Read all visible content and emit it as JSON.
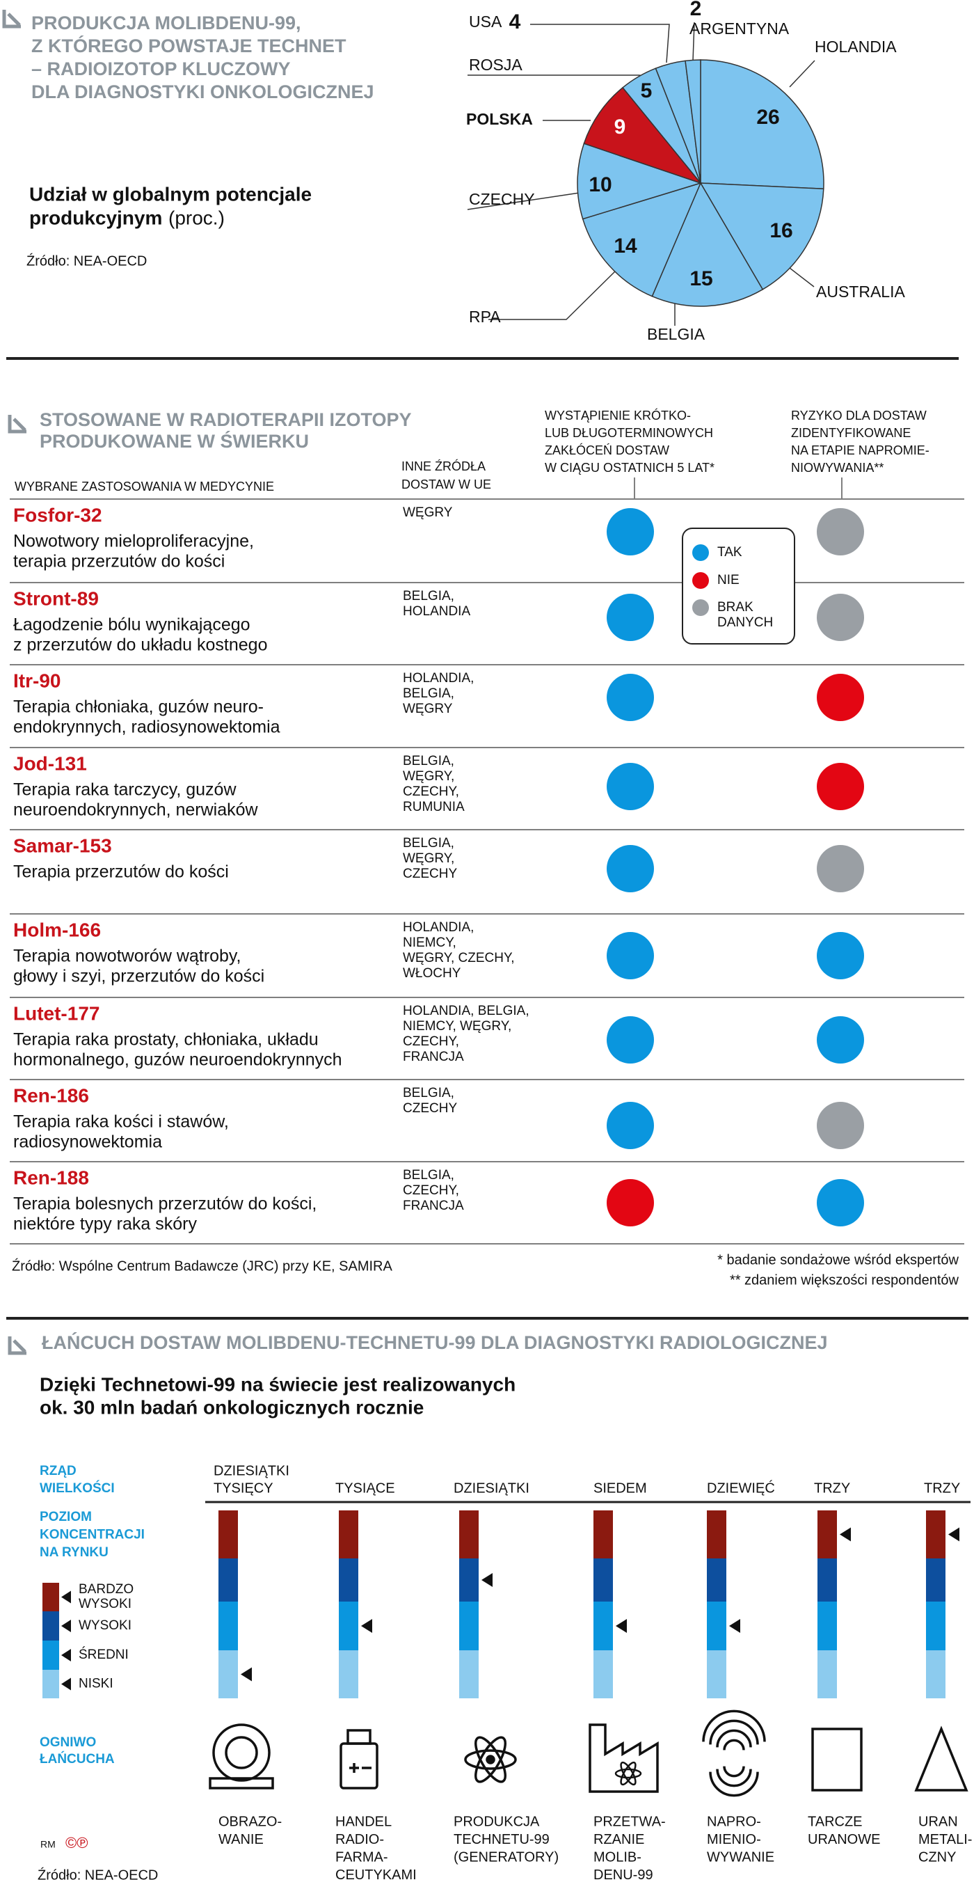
{
  "chart_data": {
    "type": "pie",
    "title_lines": [
      "PRODUKCJA MOLIBDENU-99,",
      "Z KTÓREGO POWSTAJE TECHNET",
      "– RADIOIZOTOP KLUCZOWY",
      "DLA DIAGNOSTYKI ONKOLOGICZNEJ"
    ],
    "subtitle_lines": [
      "Udział w globalnym potencjale",
      "produkcyjnym"
    ],
    "unit": "(proc.)",
    "source": "Źródło: NEA-OECD",
    "categories": [
      "HOLANDIA",
      "AUSTRALIA",
      "BELGIA",
      "RPA",
      "CZECHY",
      "POLSKA",
      "ROSJA",
      "USA",
      "ARGENTYNA"
    ],
    "values": [
      26,
      16,
      15,
      14,
      10,
      9,
      5,
      4,
      2
    ],
    "colors": [
      "#7dc4ef",
      "#7dc4ef",
      "#7dc4ef",
      "#7dc4ef",
      "#7dc4ef",
      "#c8131b",
      "#7dc4ef",
      "#7dc4ef",
      "#7dc4ef"
    ]
  },
  "isotopes": {
    "title_lines": [
      "STOSOWANE W RADIOTERAPII IZOTOPY",
      "PRODUKOWANE W ŚWIERKU"
    ],
    "application_header": "WYBRANE ZASTOSOWANIA W MEDYCYNIE",
    "sources_header_lines": [
      "INNE ŹRÓDŁA",
      "DOSTAW W UE"
    ],
    "disruption_header_lines": [
      "WYSTĄPIENIE KRÓTKO-",
      "LUB DŁUGOTERMINOWYCH",
      "ZAKŁÓCEŃ DOSTAW",
      "W CIĄGU OSTATNICH 5 LAT*"
    ],
    "risk_header_lines": [
      "RYZYKO DLA DOSTAW",
      "ZIDENTYFIKOWANE",
      "NA ETAPIE NAPROMIE-",
      "NIOWYWANIA**"
    ],
    "legend": [
      {
        "label_lines": [
          "TAK"
        ],
        "color": "#0a96de"
      },
      {
        "label_lines": [
          "NIE"
        ],
        "color": "#e30613"
      },
      {
        "label_lines": [
          "BRAK",
          "DANYCH"
        ],
        "color": "#9a9fa4"
      }
    ],
    "rows": [
      {
        "name": "Fosfor-32",
        "description_lines": [
          "Nowotwory mieloproliferacyjne,",
          "terapia przerzutów do kości"
        ],
        "sources_lines": [
          "WĘGRY"
        ],
        "disruption": 0,
        "risk": 2
      },
      {
        "name": "Stront-89",
        "description_lines": [
          "Łagodzenie bólu wynikającego",
          "z przerzutów do układu kostnego"
        ],
        "sources_lines": [
          "BELGIA,",
          "HOLANDIA"
        ],
        "disruption": 0,
        "risk": 2
      },
      {
        "name": "Itr-90",
        "description_lines": [
          "Terapia chłoniaka, guzów neuro-",
          "endokrynnych, radiosynowektomia"
        ],
        "sources_lines": [
          "HOLANDIA,",
          "BELGIA,",
          "WĘGRY"
        ],
        "disruption": 0,
        "risk": 1
      },
      {
        "name": "Jod-131",
        "description_lines": [
          "Terapia raka tarczycy, guzów",
          "neuroendokrynnych, nerwiaków"
        ],
        "sources_lines": [
          "BELGIA,",
          "WĘGRY,",
          "CZECHY,",
          "RUMUNIA"
        ],
        "disruption": 0,
        "risk": 1
      },
      {
        "name": "Samar-153",
        "description_lines": [
          "Terapia przerzutów do kości"
        ],
        "sources_lines": [
          "BELGIA,",
          "WĘGRY,",
          "CZECHY"
        ],
        "disruption": 0,
        "risk": 2
      },
      {
        "name": "Holm-166",
        "description_lines": [
          "Terapia nowotworów wątroby,",
          "głowy i szyi, przerzutów do kości"
        ],
        "sources_lines": [
          "HOLANDIA,",
          "NIEMCY,",
          "WĘGRY, CZECHY,",
          "WŁOCHY"
        ],
        "disruption": 0,
        "risk": 0
      },
      {
        "name": "Lutet-177",
        "description_lines": [
          "Terapia raka prostaty, chłoniaka, układu",
          "hormonalnego, guzów neuroendokrynnych"
        ],
        "sources_lines": [
          "HOLANDIA, BELGIA,",
          "NIEMCY, WĘGRY,",
          "CZECHY,",
          "FRANCJA"
        ],
        "disruption": 0,
        "risk": 0
      },
      {
        "name": "Ren-186",
        "description_lines": [
          "Terapia raka kości i stawów,",
          "radiosynowektomia"
        ],
        "sources_lines": [
          "BELGIA,",
          "CZECHY"
        ],
        "disruption": 0,
        "risk": 2
      },
      {
        "name": "Ren-188",
        "description_lines": [
          "Terapia bolesnych przerzutów do kości,",
          "niektóre typy raka skóry"
        ],
        "sources_lines": [
          "BELGIA,",
          "CZECHY,",
          "FRANCJA"
        ],
        "disruption": 1,
        "risk": 0
      }
    ],
    "source": "Źródło: Wspólne Centrum Badawcze (JRC) przy KE, SAMIRA",
    "footnotes": [
      "* badanie sondażowe wśród ekspertów",
      "** zdaniem większości respondentów"
    ]
  },
  "supply_chain": {
    "title": "ŁAŃCUCH DOSTAW MOLIBDENU-TECHNETU-99 DLA DIAGNOSTYKI RADIOLOGICZNEJ",
    "subtitle_lines": [
      "Dzięki Technetowi-99 na świecie jest realizowanych",
      "ok. 30 mln badań onkologicznych rocznie"
    ],
    "magnitude_label_lines": [
      "RZĄD",
      "WIELKOŚCI"
    ],
    "concentration_label_lines": [
      "POZIOM",
      "KONCENTRACJI",
      "NA RYNKU"
    ],
    "link_label_lines": [
      "OGNIWO",
      "ŁAŃCUCHA"
    ],
    "levels": [
      {
        "label_lines": [
          "BARDZO",
          "WYSOKI"
        ],
        "color": "#8b1a10"
      },
      {
        "label_lines": [
          "WYSOKI"
        ],
        "color": "#0d4f9e"
      },
      {
        "label_lines": [
          "ŚREDNI"
        ],
        "color": "#0a96de"
      },
      {
        "label_lines": [
          "NISKI"
        ],
        "color": "#8ccbee"
      }
    ],
    "stages": [
      {
        "magnitude_lines": [
          "DZIESIĄTKI",
          "TYSIĘCY"
        ],
        "level": 3,
        "link_lines": [
          "OBRAZO-",
          "WANIE"
        ]
      },
      {
        "magnitude_lines": [
          "TYSIĄCE"
        ],
        "level": 2,
        "link_lines": [
          "HANDEL",
          "RADIO-",
          "FARMA-",
          "CEUTYKAMI"
        ]
      },
      {
        "magnitude_lines": [
          "DZIESIĄTKI"
        ],
        "level": 1,
        "link_lines": [
          "PRODUKCJA",
          "TECHNETU-99",
          "(GENERATORY)"
        ]
      },
      {
        "magnitude_lines": [
          "SIEDEM"
        ],
        "level": 2,
        "link_lines": [
          "PRZETWA-",
          "RZANIE",
          "MOLIB-",
          "DENU-99"
        ]
      },
      {
        "magnitude_lines": [
          "DZIEWIĘĆ"
        ],
        "level": 2,
        "link_lines": [
          "NAPRO-",
          "MIENIO-",
          "WYWANIE"
        ]
      },
      {
        "magnitude_lines": [
          "TRZY"
        ],
        "level": 0,
        "link_lines": [
          "TARCZE",
          "URANOWE"
        ]
      },
      {
        "magnitude_lines": [
          "TRZY"
        ],
        "level": 0,
        "link_lines": [
          "URAN",
          "METALI-",
          "CZNY"
        ]
      }
    ],
    "credit": "RM",
    "symbols": "©℗",
    "source": "Źródło: NEA-OECD"
  }
}
